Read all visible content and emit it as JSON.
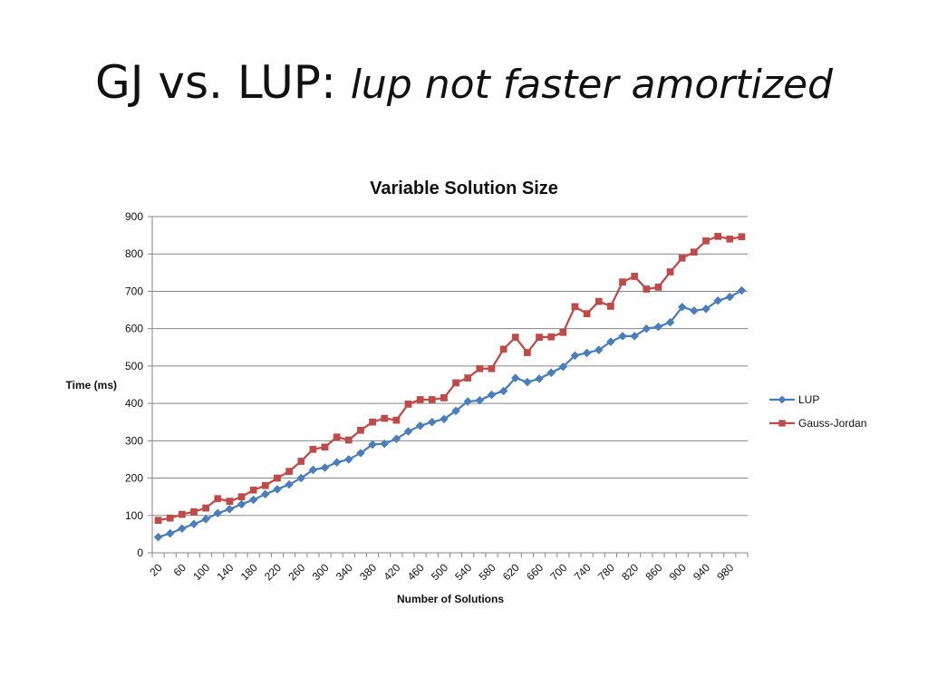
{
  "slide": {
    "title_main": "GJ vs. LUP: ",
    "title_sub": "lup not faster amortized"
  },
  "chart_data": {
    "type": "line",
    "title": "Variable Solution Size",
    "xlabel": "Number of Solutions",
    "ylabel": "Time (ms)",
    "ylim": [
      0,
      900
    ],
    "yticks": [
      0,
      100,
      200,
      300,
      400,
      500,
      600,
      700,
      800,
      900
    ],
    "grid": true,
    "legend_position": "right",
    "categories": [
      20,
      40,
      60,
      80,
      100,
      120,
      140,
      160,
      180,
      200,
      220,
      240,
      260,
      280,
      300,
      320,
      340,
      360,
      380,
      400,
      420,
      440,
      460,
      480,
      500,
      520,
      540,
      560,
      580,
      600,
      620,
      640,
      660,
      680,
      700,
      720,
      740,
      760,
      780,
      800,
      820,
      840,
      860,
      880,
      900,
      920,
      940,
      960,
      980,
      1000
    ],
    "xtick_labels": [
      "20",
      "60",
      "100",
      "140",
      "180",
      "220",
      "260",
      "300",
      "340",
      "380",
      "420",
      "460",
      "500",
      "540",
      "580",
      "620",
      "660",
      "700",
      "740",
      "780",
      "820",
      "860",
      "900",
      "940",
      "980"
    ],
    "series": [
      {
        "name": "LUP",
        "color": "#4a7ebb",
        "marker": "diamond",
        "values": [
          42,
          52,
          65,
          77,
          90,
          106,
          117,
          130,
          142,
          157,
          170,
          183,
          200,
          222,
          228,
          242,
          250,
          267,
          290,
          292,
          305,
          325,
          340,
          350,
          358,
          380,
          405,
          408,
          423,
          433,
          468,
          457,
          466,
          482,
          498,
          528,
          535,
          543,
          565,
          580,
          580,
          600,
          605,
          617,
          658,
          648,
          653,
          675,
          685,
          702
        ]
      },
      {
        "name": "Gauss-Jordan",
        "color": "#be4b48",
        "marker": "square",
        "values": [
          87,
          93,
          103,
          110,
          120,
          145,
          138,
          150,
          168,
          180,
          200,
          218,
          245,
          277,
          283,
          310,
          302,
          328,
          350,
          360,
          355,
          398,
          410,
          410,
          415,
          455,
          468,
          493,
          493,
          545,
          577,
          536,
          577,
          578,
          590,
          659,
          640,
          673,
          660,
          725,
          740,
          706,
          711,
          752,
          789,
          805,
          835,
          847,
          840,
          846
        ]
      }
    ]
  }
}
